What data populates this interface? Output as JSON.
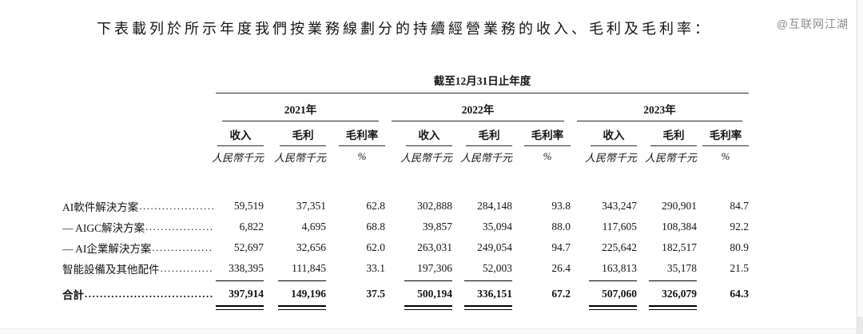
{
  "page": {
    "title": "下表載列於所示年度我們按業務線劃分的持續經營業務的收入、毛利及毛利率：",
    "watermark": "@互联网江湖"
  },
  "table": {
    "period_header": "截至12月31日止年度",
    "leader_dots": "............................................................",
    "year_groups": [
      {
        "label": "2021年"
      },
      {
        "label": "2022年"
      },
      {
        "label": "2023年"
      }
    ],
    "column_headers": {
      "revenue": "收入",
      "gross_profit": "毛利",
      "gross_margin": "毛利率"
    },
    "units": {
      "money": "人民幣千元",
      "percent": "%"
    },
    "rows": [
      {
        "label": "AI軟件解決方案",
        "values": [
          "59,519",
          "37,351",
          "62.8",
          "302,888",
          "284,148",
          "93.8",
          "343,247",
          "290,901",
          "84.7"
        ]
      },
      {
        "label": "— AIGC解決方案",
        "values": [
          "6,822",
          "4,695",
          "68.8",
          "39,857",
          "35,094",
          "88.0",
          "117,605",
          "108,384",
          "92.2"
        ]
      },
      {
        "label": "— AI企業解決方案",
        "values": [
          "52,697",
          "32,656",
          "62.0",
          "263,031",
          "249,054",
          "94.7",
          "225,642",
          "182,517",
          "80.9"
        ]
      },
      {
        "label": "智能設備及其他配件",
        "values": [
          "338,395",
          "111,845",
          "33.1",
          "197,306",
          "52,003",
          "26.4",
          "163,813",
          "35,178",
          "21.5"
        ]
      }
    ],
    "total_row": {
      "label": "合計",
      "values": [
        "397,914",
        "149,196",
        "37.5",
        "500,194",
        "336,151",
        "67.2",
        "507,060",
        "326,079",
        "64.3"
      ]
    }
  }
}
